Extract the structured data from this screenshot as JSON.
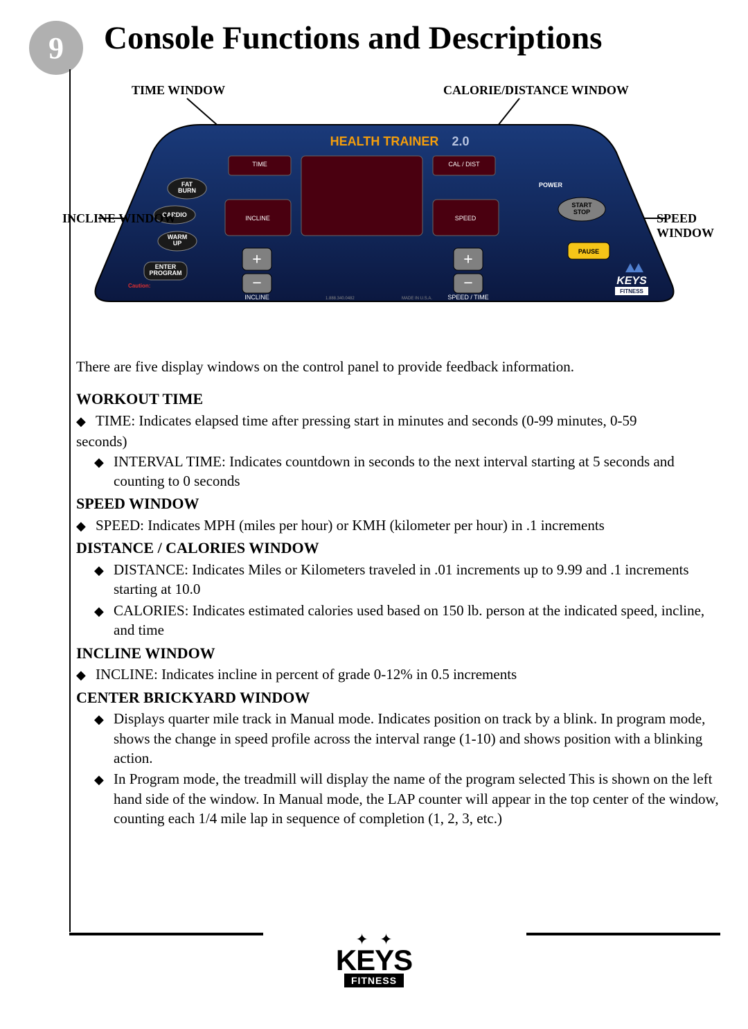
{
  "page_number": "9",
  "title": "Console Functions and Descriptions",
  "diagram": {
    "labels": {
      "time": "TIME WINDOW",
      "calorie": "CALORIE/DISTANCE WINDOW",
      "incline": "INCLINE WINDOW",
      "speed": "SPEED WINDOW"
    },
    "header": {
      "brand": "HEALTH TRAINER",
      "version": "2.0"
    },
    "window_labels": {
      "time": "TIME",
      "cal": "CAL / DIST",
      "incline": "INCLINE",
      "speed": "SPEED"
    },
    "left_pills": [
      "FAT\nBURN",
      "CARDIO",
      "WARM\nUP",
      "ENTER\nPROGRAM"
    ],
    "right_buttons": {
      "power": "POWER",
      "start": "START\nSTOP",
      "pause": "PAUSE"
    },
    "incline_pad": "INCLINE",
    "speed_pad": "SPEED / TIME",
    "caution": "Caution:",
    "phone": "1.888.340.0482",
    "made": "MADE IN U.S.A.",
    "keys": "KEYS",
    "fitness": "FITNESS",
    "colors": {
      "console_top": "#1a3a7a",
      "console_bottom": "#0b1840",
      "header_brand": "#f59e0b",
      "header_version": "#b8c4e0",
      "power_text": "#e03030"
    }
  },
  "intro": "There are five display windows on the control panel to provide feedback information.",
  "sections": [
    {
      "heading": "WORKOUT TIME",
      "items": [
        {
          "indent": false,
          "text": "TIME: Indicates elapsed time after pressing start in minutes and seconds (0-99 minutes, 0-59",
          "cont": "seconds)"
        },
        {
          "indent": true,
          "text": "INTERVAL TIME:  Indicates countdown in seconds to the next interval starting at 5 seconds and counting to 0 seconds"
        }
      ]
    },
    {
      "heading": "SPEED WINDOW",
      "items": [
        {
          "indent": false,
          "text": "SPEED:  Indicates MPH (miles per hour) or KMH (kilometer per hour) in .1 increments"
        }
      ]
    },
    {
      "heading": "DISTANCE / CALORIES WINDOW",
      "items": [
        {
          "indent": true,
          "text": "DISTANCE:  Indicates Miles or Kilometers traveled in .01 increments up to 9.99 and .1 increments starting at 10.0"
        },
        {
          "indent": true,
          "text": "CALORIES: Indicates estimated calories used based on 150 lb. person at the indicated speed, incline, and time"
        }
      ]
    },
    {
      "heading": "INCLINE WINDOW",
      "items": [
        {
          "indent": false,
          "text": "INCLINE:  Indicates incline in percent of grade 0-12% in 0.5 increments"
        }
      ]
    },
    {
      "heading": "CENTER BRICKYARD WINDOW",
      "items": [
        {
          "indent": true,
          "text": "Displays quarter mile track in Manual mode.  Indicates position on track by a blink.  In program mode, shows the change in speed profile across the interval range (1-10) and shows position with a blinking action."
        },
        {
          "indent": true,
          "text": "In Program mode, the treadmill will display the name of the program selected This is shown on the left hand side of the window.  In Manual mode, the LAP counter will appear in the top center of the window, counting each 1/4 mile lap in sequence of completion (1, 2, 3, etc.)"
        }
      ]
    }
  ],
  "footer": {
    "keys": "KEYS",
    "fitness": "FITNESS"
  }
}
